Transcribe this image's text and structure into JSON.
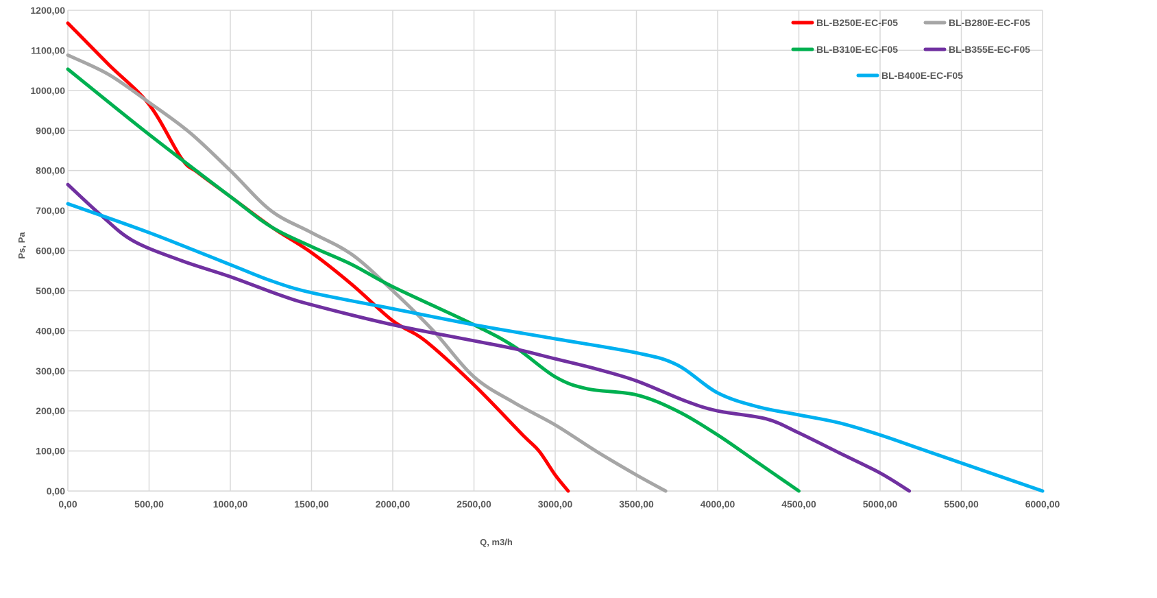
{
  "chart_data": {
    "type": "line",
    "title": "",
    "xlabel": "Q, m3/h",
    "ylabel": "Ps, Pa",
    "xlim": [
      0,
      6000
    ],
    "ylim": [
      0,
      1200
    ],
    "grid": true,
    "legend_placement": "top-right",
    "x_ticks": [
      "0,00",
      "500,00",
      "1000,00",
      "1500,00",
      "2000,00",
      "2500,00",
      "3000,00",
      "3500,00",
      "4000,00",
      "4500,00",
      "5000,00",
      "5500,00",
      "6000,00"
    ],
    "y_ticks": [
      "0,00",
      "100,00",
      "200,00",
      "300,00",
      "400,00",
      "500,00",
      "600,00",
      "700,00",
      "800,00",
      "900,00",
      "1000,00",
      "1100,00",
      "1200,00"
    ],
    "series": [
      {
        "name": "BL-B250E-EC-F05",
        "color": "#ff0000",
        "x": [
          0,
          250,
          500,
          700,
          800,
          1000,
          1250,
          1500,
          1750,
          2000,
          2200,
          2500,
          2800,
          2900,
          3000,
          3080
        ],
        "y": [
          1168,
          1065,
          965,
          830,
          795,
          735,
          660,
          595,
          515,
          425,
          375,
          265,
          140,
          100,
          40,
          0
        ]
      },
      {
        "name": "BL-B280E-EC-F05",
        "color": "#a6a6a6",
        "x": [
          0,
          250,
          500,
          750,
          1000,
          1250,
          1500,
          1750,
          2000,
          2250,
          2500,
          2750,
          3000,
          3250,
          3500,
          3680
        ],
        "y": [
          1088,
          1040,
          970,
          895,
          800,
          700,
          645,
          590,
          500,
          400,
          285,
          220,
          165,
          100,
          40,
          0
        ]
      },
      {
        "name": "BL-B310E-EC-F05",
        "color": "#00b050",
        "x": [
          0,
          500,
          1000,
          1250,
          1500,
          1750,
          2000,
          2500,
          2750,
          3000,
          3200,
          3500,
          3750,
          4000,
          4250,
          4500
        ],
        "y": [
          1053,
          890,
          735,
          660,
          610,
          565,
          510,
          415,
          360,
          285,
          255,
          240,
          200,
          140,
          70,
          0
        ]
      },
      {
        "name": "BL-B355E-EC-F05",
        "color": "#7030a0",
        "x": [
          0,
          200,
          400,
          700,
          1000,
          1300,
          1500,
          2000,
          2500,
          2750,
          3000,
          3250,
          3500,
          3800,
          4000,
          4300,
          4500,
          4750,
          5000,
          5180
        ],
        "y": [
          765,
          690,
          625,
          575,
          535,
          490,
          465,
          415,
          375,
          355,
          330,
          305,
          275,
          225,
          200,
          180,
          145,
          95,
          45,
          0
        ]
      },
      {
        "name": "BL-B400E-EC-F05",
        "color": "#00b0f0",
        "x": [
          0,
          500,
          1000,
          1250,
          1500,
          2000,
          2500,
          3000,
          3500,
          3750,
          4000,
          4250,
          4500,
          4750,
          5000,
          5250,
          5500,
          6000
        ],
        "y": [
          717,
          645,
          565,
          525,
          495,
          455,
          415,
          380,
          345,
          315,
          245,
          210,
          190,
          170,
          140,
          105,
          70,
          0
        ]
      }
    ]
  }
}
